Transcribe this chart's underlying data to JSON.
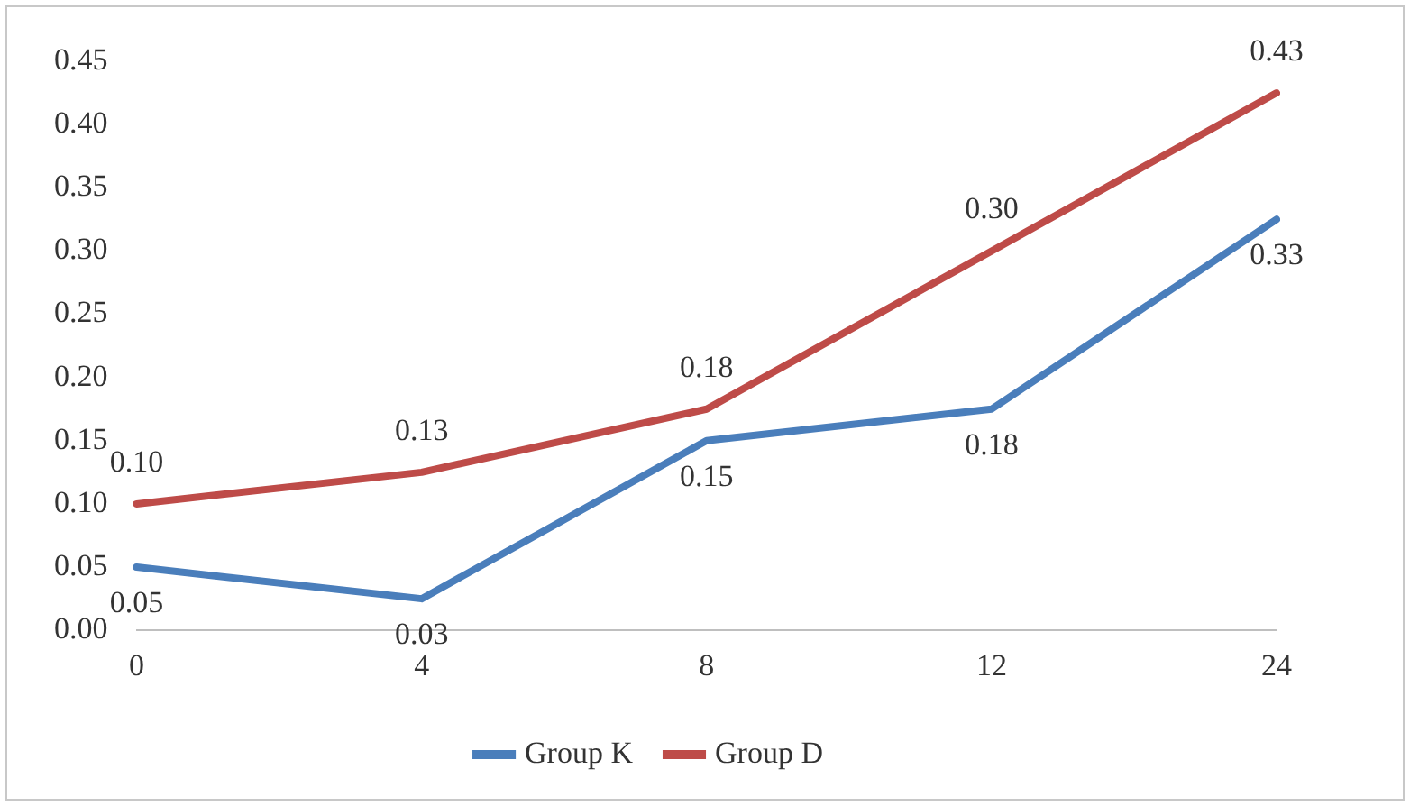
{
  "chart_data": {
    "type": "line",
    "categories": [
      "0",
      "4",
      "8",
      "12",
      "24"
    ],
    "series": [
      {
        "name": "Group K",
        "color": "#4a7ebb",
        "values": [
          0.05,
          0.025,
          0.15,
          0.175,
          0.325
        ],
        "value_labels": [
          "0.05",
          "0.03",
          "0.15",
          "0.18",
          "0.33"
        ]
      },
      {
        "name": "Group D",
        "color": "#be4b48",
        "values": [
          0.1,
          0.125,
          0.175,
          0.3,
          0.425
        ],
        "value_labels": [
          "0.10",
          "0.13",
          "0.18",
          "0.30",
          "0.43"
        ]
      }
    ],
    "ylim": [
      0,
      0.45
    ],
    "yticks": [
      {
        "value": 0,
        "label": "0.00"
      },
      {
        "value": 0.05,
        "label": "0.05"
      },
      {
        "value": 0.1,
        "label": "0.10"
      },
      {
        "value": 0.15,
        "label": "0.15"
      },
      {
        "value": 0.2,
        "label": "0.20"
      },
      {
        "value": 0.25,
        "label": "0.25"
      },
      {
        "value": 0.3,
        "label": "0.30"
      },
      {
        "value": 0.35,
        "label": "0.35"
      },
      {
        "value": 0.4,
        "label": "0.40"
      },
      {
        "value": 0.45,
        "label": "0.45"
      }
    ],
    "grid": false,
    "legend": "bottom",
    "marker": "none",
    "line_style": "solid"
  }
}
